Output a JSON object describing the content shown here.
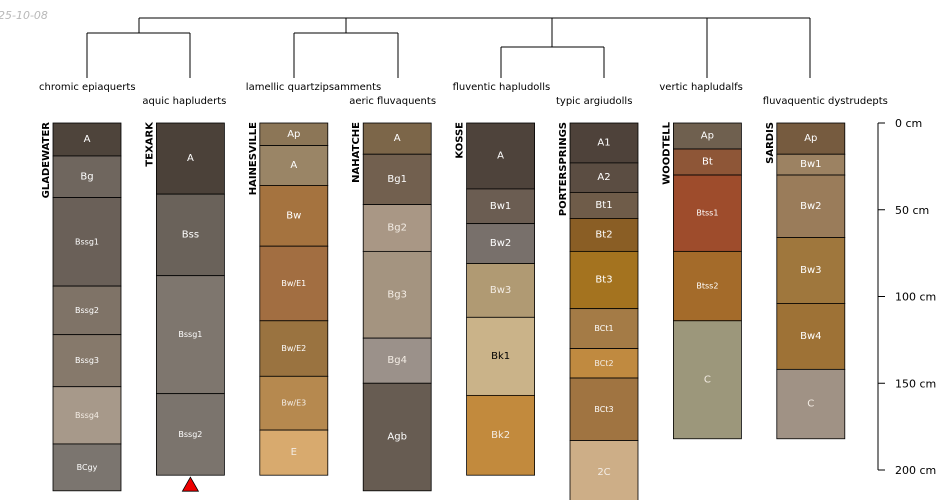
{
  "date_stamp": "25-10-08",
  "chart_data": {
    "type": "soil-profile-sketch",
    "depth_unit": "cm",
    "depth_ticks": [
      {
        "value": 0,
        "label": "0 cm"
      },
      {
        "value": 50,
        "label": "50 cm"
      },
      {
        "value": 100,
        "label": "100 cm"
      },
      {
        "value": 150,
        "label": "150 cm"
      },
      {
        "value": 200,
        "label": "200 cm"
      }
    ],
    "profiles": [
      {
        "name": "GLADEWATER",
        "taxonomy": "chromic epiaquerts",
        "horizons": [
          {
            "name": "A",
            "top": 0,
            "bottom": 19,
            "color": "#4e443b"
          },
          {
            "name": "Bg",
            "top": 19,
            "bottom": 43,
            "color": "#6f665e"
          },
          {
            "name": "Bssg1",
            "top": 43,
            "bottom": 94,
            "color": "#6a6058"
          },
          {
            "name": "Bssg2",
            "top": 94,
            "bottom": 122,
            "color": "#7f7367"
          },
          {
            "name": "Bssg3",
            "top": 122,
            "bottom": 152,
            "color": "#86796b"
          },
          {
            "name": "Bssg4",
            "top": 152,
            "bottom": 185,
            "color": "#a7998a"
          },
          {
            "name": "BCgy",
            "top": 185,
            "bottom": 212,
            "color": "#7b756f"
          }
        ]
      },
      {
        "name": "TEXARK",
        "taxonomy": "aquic hapluderts",
        "bottom_marker": true,
        "horizons": [
          {
            "name": "A",
            "top": 0,
            "bottom": 41,
            "color": "#4b4139"
          },
          {
            "name": "Bss",
            "top": 41,
            "bottom": 88,
            "color": "#6a625a"
          },
          {
            "name": "Bssg1",
            "top": 88,
            "bottom": 156,
            "color": "#7e766e"
          },
          {
            "name": "Bssg2",
            "top": 156,
            "bottom": 203,
            "color": "#7b746d"
          }
        ]
      },
      {
        "name": "HAINESVILLE",
        "taxonomy": "lamellic quartzipsamments",
        "horizons": [
          {
            "name": "Ap",
            "top": 0,
            "bottom": 13,
            "color": "#8c7657"
          },
          {
            "name": "A",
            "top": 13,
            "bottom": 36,
            "color": "#9a8566"
          },
          {
            "name": "Bw",
            "top": 36,
            "bottom": 71,
            "color": "#a5733f"
          },
          {
            "name": "Bw/E1",
            "top": 71,
            "bottom": 114,
            "color": "#a26e41"
          },
          {
            "name": "Bw/E2",
            "top": 114,
            "bottom": 146,
            "color": "#9a7340"
          },
          {
            "name": "Bw/E3",
            "top": 146,
            "bottom": 177,
            "color": "#b6894f"
          },
          {
            "name": "E",
            "top": 177,
            "bottom": 203,
            "color": "#d8aa6e"
          }
        ]
      },
      {
        "name": "NAHATCHE",
        "taxonomy": "aeric fluvaquents",
        "horizons": [
          {
            "name": "A",
            "top": 0,
            "bottom": 18,
            "color": "#7c6649"
          },
          {
            "name": "Bg1",
            "top": 18,
            "bottom": 47,
            "color": "#72604f"
          },
          {
            "name": "Bg2",
            "top": 47,
            "bottom": 74,
            "color": "#a99785"
          },
          {
            "name": "Bg3",
            "top": 74,
            "bottom": 124,
            "color": "#a49480"
          },
          {
            "name": "Bg4",
            "top": 124,
            "bottom": 150,
            "color": "#9b918a"
          },
          {
            "name": "Agb",
            "top": 150,
            "bottom": 212,
            "color": "#675c52"
          }
        ]
      },
      {
        "name": "KOSSE",
        "taxonomy": "fluventic hapludolls",
        "horizons": [
          {
            "name": "A",
            "top": 0,
            "bottom": 38,
            "color": "#4e433b"
          },
          {
            "name": "Bw1",
            "top": 38,
            "bottom": 58,
            "color": "#6b5d52"
          },
          {
            "name": "Bw2",
            "top": 58,
            "bottom": 81,
            "color": "#78706b"
          },
          {
            "name": "Bw3",
            "top": 81,
            "bottom": 112,
            "color": "#b09a73"
          },
          {
            "name": "Bk1",
            "top": 112,
            "bottom": 157,
            "color": "#cab389"
          },
          {
            "name": "Bk2",
            "top": 157,
            "bottom": 203,
            "color": "#c28a3d"
          }
        ]
      },
      {
        "name": "PORTERSPRINGS",
        "taxonomy": "typic argiudolls",
        "horizons": [
          {
            "name": "A1",
            "top": 0,
            "bottom": 23,
            "color": "#4e423a"
          },
          {
            "name": "A2",
            "top": 23,
            "bottom": 40,
            "color": "#5b4d42"
          },
          {
            "name": "Bt1",
            "top": 40,
            "bottom": 55,
            "color": "#6f5c49"
          },
          {
            "name": "Bt2",
            "top": 55,
            "bottom": 74,
            "color": "#8a5e25"
          },
          {
            "name": "Bt3",
            "top": 74,
            "bottom": 107,
            "color": "#a4731f"
          },
          {
            "name": "BCt1",
            "top": 107,
            "bottom": 130,
            "color": "#a47b46"
          },
          {
            "name": "BCt2",
            "top": 130,
            "bottom": 147,
            "color": "#c08a40"
          },
          {
            "name": "BCt3",
            "top": 147,
            "bottom": 183,
            "color": "#a07441"
          },
          {
            "name": "2C",
            "top": 183,
            "bottom": 220,
            "color": "#cdae87"
          }
        ]
      },
      {
        "name": "WOODTELL",
        "taxonomy": "vertic hapludalfs",
        "horizons": [
          {
            "name": "Ap",
            "top": 0,
            "bottom": 15,
            "color": "#6f604f"
          },
          {
            "name": "Bt",
            "top": 15,
            "bottom": 30,
            "color": "#8e5637"
          },
          {
            "name": "Btss1",
            "top": 30,
            "bottom": 74,
            "color": "#9e4c2c"
          },
          {
            "name": "Btss2",
            "top": 74,
            "bottom": 114,
            "color": "#a46b2a"
          },
          {
            "name": "C",
            "top": 114,
            "bottom": 182,
            "color": "#9c977b"
          }
        ]
      },
      {
        "name": "SARDIS",
        "taxonomy": "fluvaquentic dystrudepts",
        "horizons": [
          {
            "name": "Ap",
            "top": 0,
            "bottom": 18,
            "color": "#765b3f"
          },
          {
            "name": "Bw1",
            "top": 18,
            "bottom": 30,
            "color": "#9c8262"
          },
          {
            "name": "Bw2",
            "top": 30,
            "bottom": 66,
            "color": "#9a7c5a"
          },
          {
            "name": "Bw3",
            "top": 66,
            "bottom": 104,
            "color": "#9f773d"
          },
          {
            "name": "Bw4",
            "top": 104,
            "bottom": 142,
            "color": "#9e7236"
          },
          {
            "name": "C",
            "top": 142,
            "bottom": 182,
            "color": "#a09285"
          }
        ]
      }
    ]
  }
}
